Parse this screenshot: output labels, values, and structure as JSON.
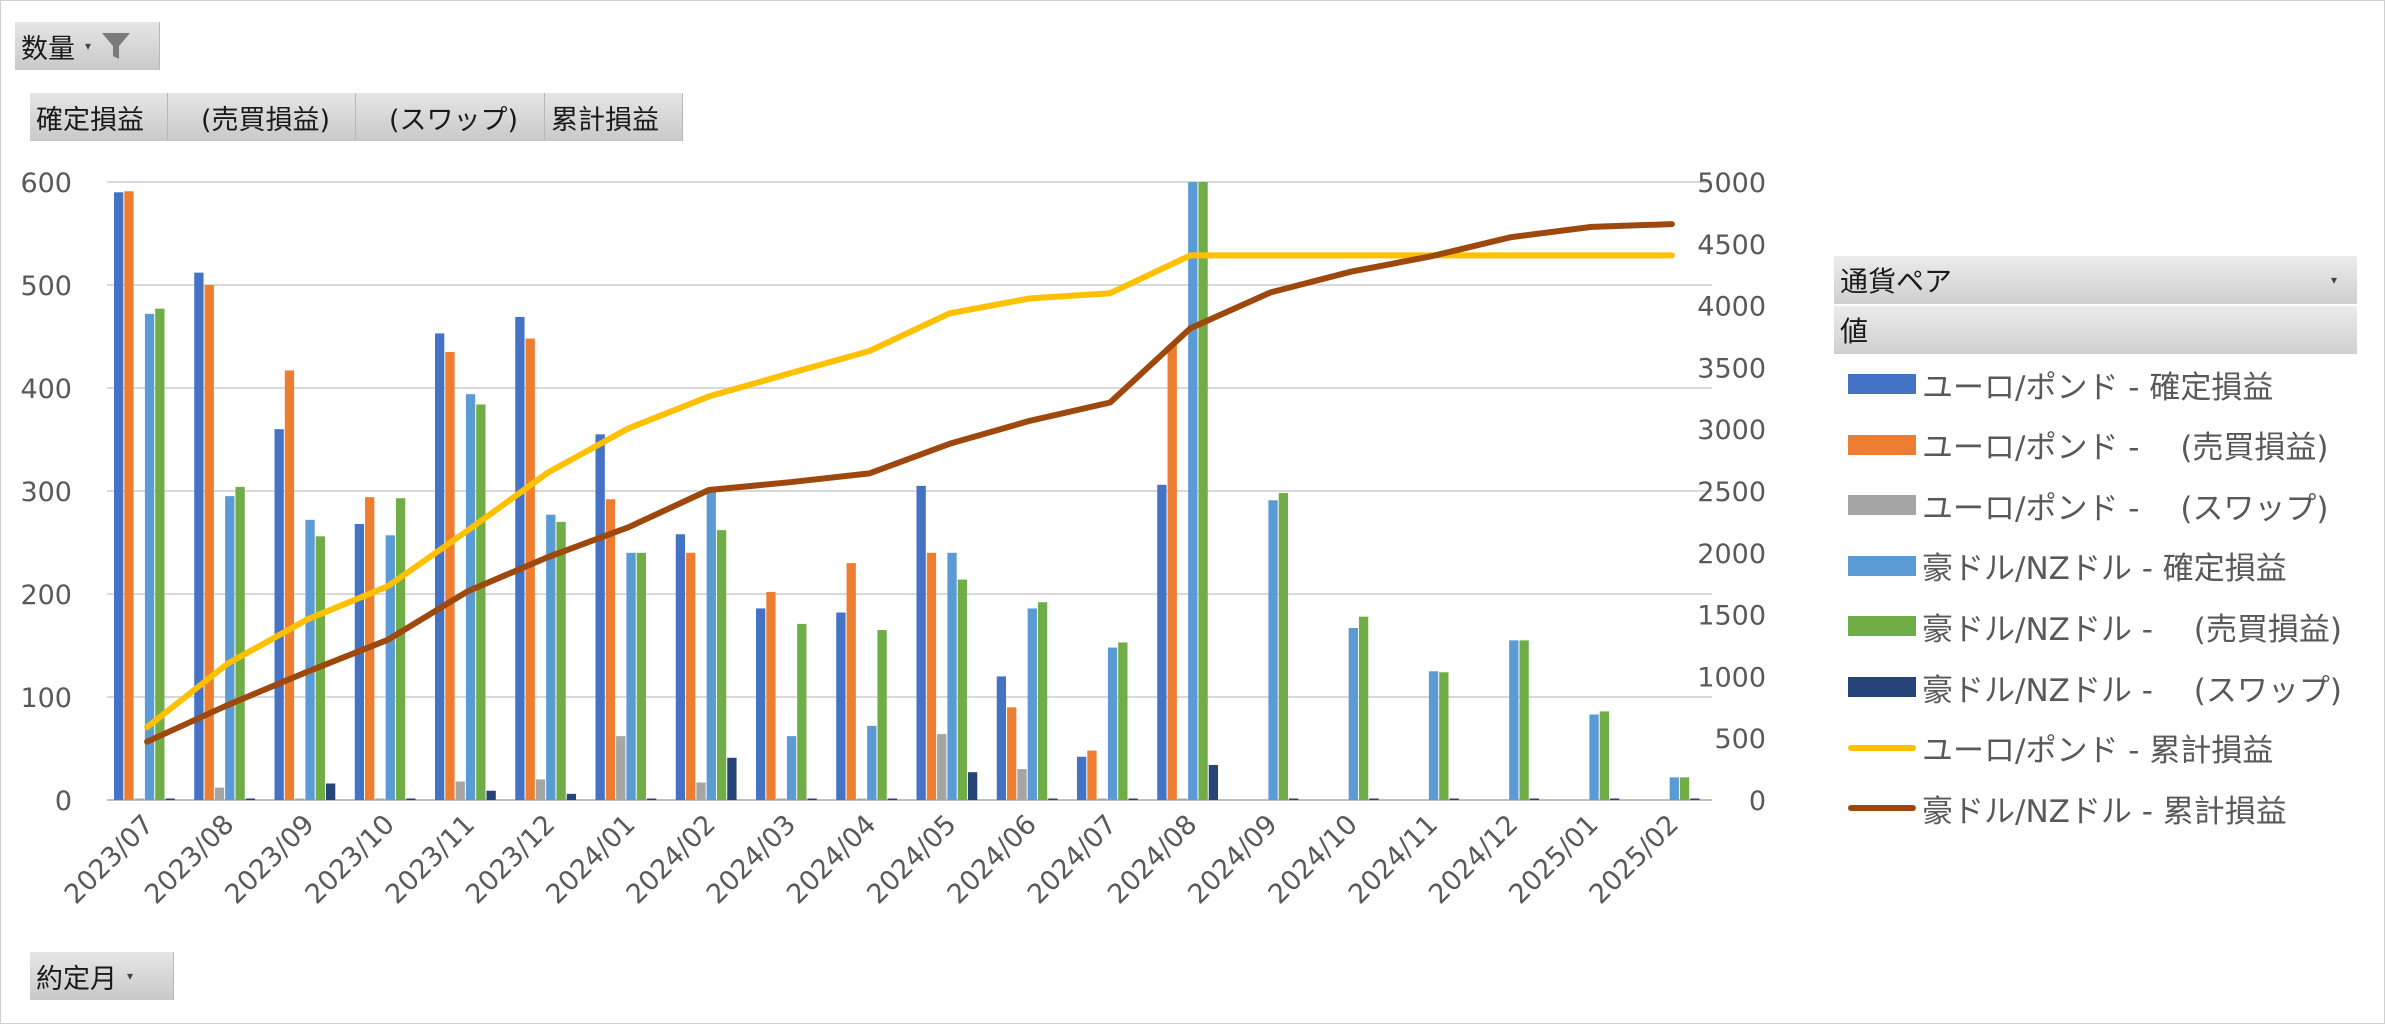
{
  "filters": {
    "value_field": "数量",
    "col_fields": [
      "確定損益",
      "　(売買損益)",
      "　(スワップ)",
      "累計損益"
    ],
    "row_field": "約定月",
    "legend_field": "通貨ペア",
    "legend_values": "値"
  },
  "colors": {
    "eur_gbp_pnl": "#4472c4",
    "eur_gbp_trade": "#ed7d31",
    "eur_gbp_swap": "#a5a5a5",
    "aud_nzd_pnl": "#5b9bd5",
    "aud_nzd_trade": "#70ad47",
    "aud_nzd_swap": "#264478",
    "eur_gbp_cum": "#ffc000",
    "aud_nzd_cum": "#9e480e"
  },
  "chart_data": {
    "type": "bar",
    "categories": [
      "2023/07",
      "2023/08",
      "2023/09",
      "2023/10",
      "2023/11",
      "2023/12",
      "2024/01",
      "2024/02",
      "2024/03",
      "2024/04",
      "2024/05",
      "2024/06",
      "2024/07",
      "2024/08",
      "2024/09",
      "2024/10",
      "2024/11",
      "2024/12",
      "2025/01",
      "2025/02"
    ],
    "y_left_ticks": [
      "0",
      "100",
      "200",
      "300",
      "400",
      "500",
      "600"
    ],
    "y_right_ticks": [
      "0",
      "500",
      "1000",
      "1500",
      "2000",
      "2500",
      "3000",
      "3500",
      "4000",
      "4500",
      "5000"
    ],
    "ylim_left": [
      0,
      600
    ],
    "ylim_right": [
      0,
      5000
    ],
    "grid": true,
    "legend_position": "right",
    "series": [
      {
        "name": "ユーロ/ポンド - 確定損益",
        "axis": "left",
        "color_key": "eur_gbp_pnl",
        "values": [
          590,
          512,
          360,
          268,
          453,
          469,
          355,
          258,
          186,
          182,
          305,
          120,
          42,
          306,
          null,
          null,
          null,
          null,
          null,
          null
        ]
      },
      {
        "name": "ユーロ/ポンド - 　(売買損益)",
        "axis": "left",
        "color_key": "eur_gbp_trade",
        "values": [
          591,
          500,
          417,
          294,
          435,
          448,
          292,
          240,
          202,
          230,
          240,
          90,
          48,
          442,
          null,
          null,
          null,
          null,
          null,
          null
        ]
      },
      {
        "name": "ユーロ/ポンド - 　(スワップ)",
        "axis": "left",
        "color_key": "eur_gbp_swap",
        "values": [
          0,
          12,
          0,
          0,
          18,
          20,
          62,
          17,
          0,
          0,
          64,
          30,
          0,
          0,
          null,
          null,
          null,
          null,
          null,
          null
        ]
      },
      {
        "name": "豪ドル/NZドル - 確定損益",
        "axis": "left",
        "color_key": "aud_nzd_pnl",
        "values": [
          472,
          295,
          272,
          257,
          394,
          277,
          240,
          301,
          62,
          72,
          240,
          186,
          148,
          600,
          291,
          167,
          125,
          155,
          83,
          22
        ]
      },
      {
        "name": "豪ドル/NZドル - 　(売買損益)",
        "axis": "left",
        "color_key": "aud_nzd_trade",
        "values": [
          477,
          304,
          256,
          293,
          384,
          270,
          240,
          262,
          171,
          165,
          214,
          192,
          153,
          600,
          298,
          178,
          124,
          155,
          86,
          22
        ]
      },
      {
        "name": "豪ドル/NZドル - 　(スワップ)",
        "axis": "left",
        "color_key": "aud_nzd_swap",
        "values": [
          0,
          0,
          16,
          0,
          9,
          6,
          0,
          41,
          0,
          0,
          27,
          0,
          0,
          34,
          0,
          0,
          0,
          0,
          0,
          0
        ]
      },
      {
        "name": "ユーロ/ポンド - 累計損益",
        "axis": "right",
        "type": "line",
        "color_key": "eur_gbp_cum",
        "values": [
          590,
          1102,
          1462,
          1730,
          2183,
          2652,
          3007,
          3265,
          3451,
          3633,
          3938,
          4058,
          4100,
          4406,
          4406,
          4406,
          4406,
          4406,
          4406,
          4406
        ]
      },
      {
        "name": "豪ドル/NZドル - 累計損益",
        "axis": "right",
        "type": "line",
        "color_key": "aud_nzd_cum",
        "values": [
          472,
          767,
          1039,
          1296,
          1690,
          1967,
          2207,
          2508,
          2570,
          2642,
          2882,
          3068,
          3216,
          3816,
          4107,
          4274,
          4399,
          4554,
          4637,
          4659
        ]
      }
    ]
  }
}
